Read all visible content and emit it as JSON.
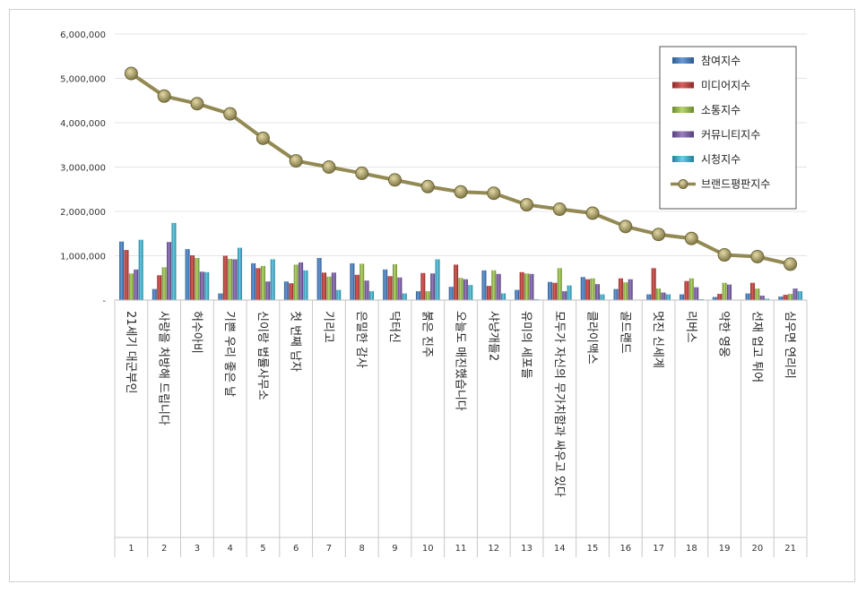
{
  "chart_data": {
    "type": "bar",
    "categories": [
      "1",
      "2",
      "3",
      "4",
      "5",
      "6",
      "7",
      "8",
      "9",
      "10",
      "11",
      "12",
      "13",
      "14",
      "15",
      "16",
      "17",
      "18",
      "19",
      "20",
      "21"
    ],
    "category_names": [
      "21세기 대군부인",
      "사랑을 처방해 드립니다",
      "허수아비",
      "기쁜 우리 좋은 날",
      "신이랑 법률사무소",
      "첫 번째 남자",
      "기리고",
      "은밀한 감사",
      "닥터신",
      "붉은 진주",
      "오늘도 매진했습니다",
      "샤냥개들2",
      "유미의 세포들",
      "모두가 자신의 무가치함과 싸우고 있다",
      "클라이맥스",
      "골드랜드",
      "멋진 신세계",
      "리버스",
      "약한 영웅",
      "선재 업고 튀어",
      "심우면 연리리"
    ],
    "yticks": [
      "-",
      "1,000,000",
      "2,000,000",
      "3,000,000",
      "4,000,000",
      "5,000,000",
      "6,000,000"
    ],
    "ylim": [
      0,
      6000000
    ],
    "grid": true,
    "legend_position": "top-right",
    "series": [
      {
        "name": "참여지수",
        "color": "#4f81bd",
        "values": [
          1320000,
          250000,
          1150000,
          150000,
          830000,
          420000,
          950000,
          830000,
          690000,
          200000,
          300000,
          670000,
          230000,
          410000,
          520000,
          250000,
          130000,
          130000,
          70000,
          150000,
          80000
        ]
      },
      {
        "name": "미디어지수",
        "color": "#c0504d",
        "values": [
          1130000,
          560000,
          1010000,
          1000000,
          720000,
          380000,
          620000,
          570000,
          540000,
          610000,
          800000,
          320000,
          630000,
          390000,
          470000,
          490000,
          720000,
          430000,
          140000,
          390000,
          120000
        ]
      },
      {
        "name": "소통지수",
        "color": "#9bbb59",
        "values": [
          600000,
          740000,
          950000,
          930000,
          770000,
          800000,
          530000,
          820000,
          810000,
          200000,
          500000,
          670000,
          600000,
          720000,
          490000,
          400000,
          260000,
          490000,
          390000,
          260000,
          140000
        ]
      },
      {
        "name": "커뮤니티지수",
        "color": "#8064a2",
        "values": [
          690000,
          1310000,
          640000,
          920000,
          420000,
          850000,
          620000,
          440000,
          510000,
          600000,
          470000,
          590000,
          590000,
          200000,
          360000,
          470000,
          170000,
          290000,
          350000,
          100000,
          260000
        ]
      },
      {
        "name": "시청지수",
        "color": "#4bacc6",
        "values": [
          1360000,
          1740000,
          630000,
          1180000,
          920000,
          670000,
          230000,
          200000,
          150000,
          920000,
          340000,
          150000,
          20000,
          330000,
          130000,
          10000,
          130000,
          20000,
          10000,
          30000,
          200000
        ]
      }
    ],
    "line_series": {
      "name": "브랜드평판지수",
      "color": "#938953",
      "values": [
        5110000,
        4600000,
        4430000,
        4200000,
        3650000,
        3140000,
        3000000,
        2860000,
        2710000,
        2560000,
        2440000,
        2410000,
        2150000,
        2050000,
        1960000,
        1660000,
        1480000,
        1390000,
        1020000,
        980000,
        810000
      ]
    }
  }
}
